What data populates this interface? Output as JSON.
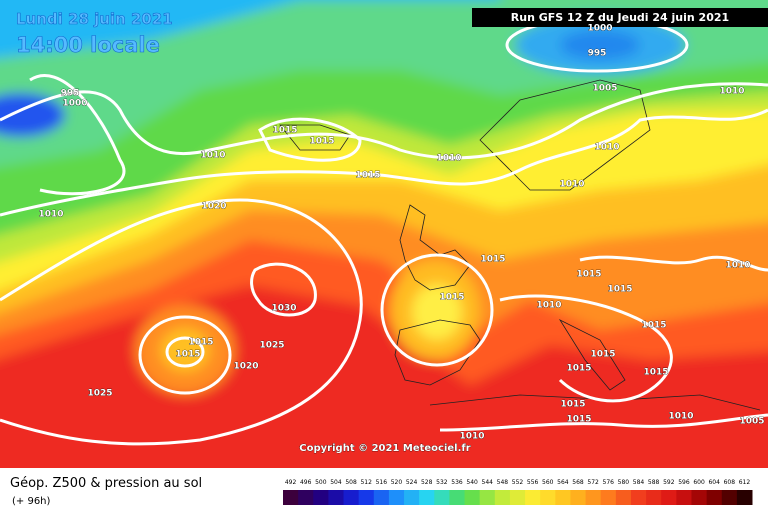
{
  "header": {
    "date": "Lundi 28 juin 2021",
    "time": "14:00 locale",
    "run": "Run GFS 12 Z du Jeudi 24 juin 2021"
  },
  "isobar_labels": [
    "995",
    "1000",
    "1000",
    "995",
    "1005",
    "1010",
    "1015",
    "1015",
    "1010",
    "1015",
    "1010",
    "1010",
    "1010",
    "1010",
    "1020",
    "1015",
    "1015",
    "1015",
    "1010",
    "1015",
    "1030",
    "1010",
    "1015",
    "1015",
    "1015",
    "1025",
    "1020",
    "1015",
    "1015",
    "1015",
    "1025",
    "1015",
    "1015",
    "1010",
    "1005",
    "1010"
  ],
  "copyright": "Copyright © 2021 Meteociel.fr",
  "legend": {
    "title": "Géop. Z500 & pression au sol",
    "lead": "(+ 96h)",
    "scale": [
      492,
      496,
      500,
      504,
      508,
      512,
      516,
      520,
      524,
      528,
      532,
      536,
      540,
      544,
      548,
      552,
      556,
      560,
      564,
      568,
      572,
      576,
      580,
      584,
      588,
      592,
      596,
      600,
      604,
      608,
      612
    ]
  }
}
